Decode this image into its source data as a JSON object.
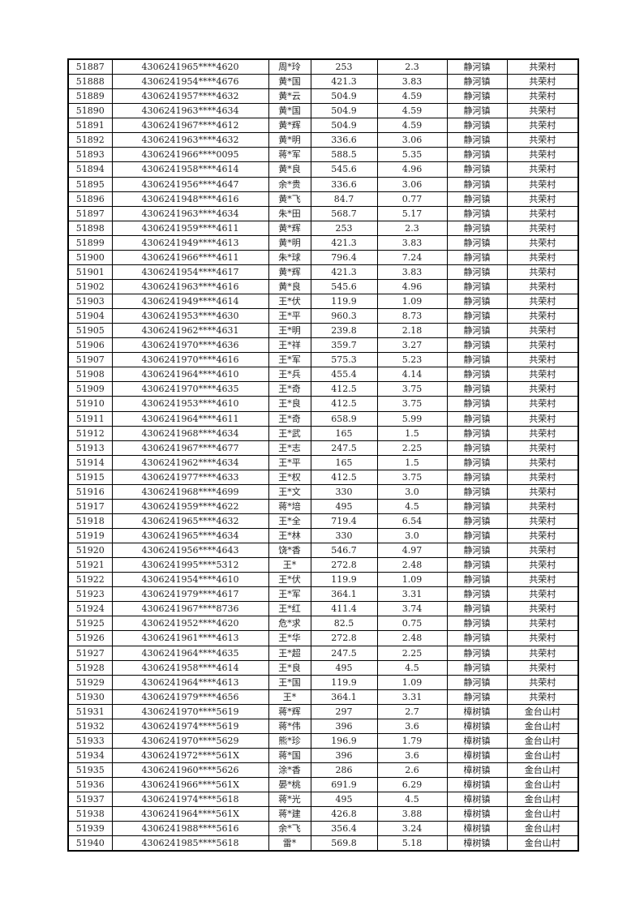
{
  "rows": [
    [
      "51887",
      "4306241965****4620",
      "周*玲",
      "253",
      "2.3",
      "静河镇",
      "共荣村"
    ],
    [
      "51888",
      "4306241954****4676",
      "黄*国",
      "421.3",
      "3.83",
      "静河镇",
      "共荣村"
    ],
    [
      "51889",
      "4306241957****4632",
      "黄*云",
      "504.9",
      "4.59",
      "静河镇",
      "共荣村"
    ],
    [
      "51890",
      "4306241963****4634",
      "黄*国",
      "504.9",
      "4.59",
      "静河镇",
      "共荣村"
    ],
    [
      "51891",
      "4306241967****4612",
      "黄*辉",
      "504.9",
      "4.59",
      "静河镇",
      "共荣村"
    ],
    [
      "51892",
      "4306241963****4632",
      "黄*明",
      "336.6",
      "3.06",
      "静河镇",
      "共荣村"
    ],
    [
      "51893",
      "4306241966****0095",
      "蒋*军",
      "588.5",
      "5.35",
      "静河镇",
      "共荣村"
    ],
    [
      "51894",
      "4306241958****4614",
      "黄*良",
      "545.6",
      "4.96",
      "静河镇",
      "共荣村"
    ],
    [
      "51895",
      "4306241956****4647",
      "余*贵",
      "336.6",
      "3.06",
      "静河镇",
      "共荣村"
    ],
    [
      "51896",
      "4306241948****4616",
      "黄*飞",
      "84.7",
      "0.77",
      "静河镇",
      "共荣村"
    ],
    [
      "51897",
      "4306241963****4634",
      "朱*田",
      "568.7",
      "5.17",
      "静河镇",
      "共荣村"
    ],
    [
      "51898",
      "4306241959****4611",
      "黄*辉",
      "253",
      "2.3",
      "静河镇",
      "共荣村"
    ],
    [
      "51899",
      "4306241949****4613",
      "黄*明",
      "421.3",
      "3.83",
      "静河镇",
      "共荣村"
    ],
    [
      "51900",
      "4306241966****4611",
      "朱*球",
      "796.4",
      "7.24",
      "静河镇",
      "共荣村"
    ],
    [
      "51901",
      "4306241954****4617",
      "黄*辉",
      "421.3",
      "3.83",
      "静河镇",
      "共荣村"
    ],
    [
      "51902",
      "4306241963****4616",
      "黄*良",
      "545.6",
      "4.96",
      "静河镇",
      "共荣村"
    ],
    [
      "51903",
      "4306241949****4614",
      "王*伏",
      "119.9",
      "1.09",
      "静河镇",
      "共荣村"
    ],
    [
      "51904",
      "4306241953****4630",
      "王*平",
      "960.3",
      "8.73",
      "静河镇",
      "共荣村"
    ],
    [
      "51905",
      "4306241962****4631",
      "王*明",
      "239.8",
      "2.18",
      "静河镇",
      "共荣村"
    ],
    [
      "51906",
      "4306241970****4636",
      "王*祥",
      "359.7",
      "3.27",
      "静河镇",
      "共荣村"
    ],
    [
      "51907",
      "4306241970****4616",
      "王*军",
      "575.3",
      "5.23",
      "静河镇",
      "共荣村"
    ],
    [
      "51908",
      "4306241964****4610",
      "王*兵",
      "455.4",
      "4.14",
      "静河镇",
      "共荣村"
    ],
    [
      "51909",
      "4306241970****4635",
      "王*奇",
      "412.5",
      "3.75",
      "静河镇",
      "共荣村"
    ],
    [
      "51910",
      "4306241953****4610",
      "王*良",
      "412.5",
      "3.75",
      "静河镇",
      "共荣村"
    ],
    [
      "51911",
      "4306241964****4611",
      "王*奇",
      "658.9",
      "5.99",
      "静河镇",
      "共荣村"
    ],
    [
      "51912",
      "4306241968****4634",
      "王*武",
      "165",
      "1.5",
      "静河镇",
      "共荣村"
    ],
    [
      "51913",
      "4306241967****4677",
      "王*志",
      "247.5",
      "2.25",
      "静河镇",
      "共荣村"
    ],
    [
      "51914",
      "4306241962****4634",
      "王*平",
      "165",
      "1.5",
      "静河镇",
      "共荣村"
    ],
    [
      "51915",
      "4306241977****4633",
      "王*权",
      "412.5",
      "3.75",
      "静河镇",
      "共荣村"
    ],
    [
      "51916",
      "4306241968****4699",
      "王*文",
      "330",
      "3.0",
      "静河镇",
      "共荣村"
    ],
    [
      "51917",
      "4306241959****4622",
      "蒋*培",
      "495",
      "4.5",
      "静河镇",
      "共荣村"
    ],
    [
      "51918",
      "4306241965****4632",
      "王*全",
      "719.4",
      "6.54",
      "静河镇",
      "共荣村"
    ],
    [
      "51919",
      "4306241965****4634",
      "王*林",
      "330",
      "3.0",
      "静河镇",
      "共荣村"
    ],
    [
      "51920",
      "4306241956****4643",
      "饶*香",
      "546.7",
      "4.97",
      "静河镇",
      "共荣村"
    ],
    [
      "51921",
      "4306241995****5312",
      "王*",
      "272.8",
      "2.48",
      "静河镇",
      "共荣村"
    ],
    [
      "51922",
      "4306241954****4610",
      "王*伏",
      "119.9",
      "1.09",
      "静河镇",
      "共荣村"
    ],
    [
      "51923",
      "4306241979****4617",
      "王*军",
      "364.1",
      "3.31",
      "静河镇",
      "共荣村"
    ],
    [
      "51924",
      "4306241967****8736",
      "王*红",
      "411.4",
      "3.74",
      "静河镇",
      "共荣村"
    ],
    [
      "51925",
      "4306241952****4620",
      "危*求",
      "82.5",
      "0.75",
      "静河镇",
      "共荣村"
    ],
    [
      "51926",
      "4306241961****4613",
      "王*华",
      "272.8",
      "2.48",
      "静河镇",
      "共荣村"
    ],
    [
      "51927",
      "4306241964****4635",
      "王*超",
      "247.5",
      "2.25",
      "静河镇",
      "共荣村"
    ],
    [
      "51928",
      "4306241958****4614",
      "王*良",
      "495",
      "4.5",
      "静河镇",
      "共荣村"
    ],
    [
      "51929",
      "4306241964****4613",
      "王*国",
      "119.9",
      "1.09",
      "静河镇",
      "共荣村"
    ],
    [
      "51930",
      "4306241979****4656",
      "王*",
      "364.1",
      "3.31",
      "静河镇",
      "共荣村"
    ],
    [
      "51931",
      "4306241970****5619",
      "蒋*辉",
      "297",
      "2.7",
      "樟树镇",
      "金台山村"
    ],
    [
      "51932",
      "4306241974****5619",
      "蒋*伟",
      "396",
      "3.6",
      "樟树镇",
      "金台山村"
    ],
    [
      "51933",
      "4306241970****5629",
      "熊*珍",
      "196.9",
      "1.79",
      "樟树镇",
      "金台山村"
    ],
    [
      "51934",
      "4306241972****561X",
      "蒋*国",
      "396",
      "3.6",
      "樟树镇",
      "金台山村"
    ],
    [
      "51935",
      "4306241960****5626",
      "涂*香",
      "286",
      "2.6",
      "樟树镇",
      "金台山村"
    ],
    [
      "51936",
      "4306241966****561X",
      "晏*桃",
      "691.9",
      "6.29",
      "樟树镇",
      "金台山村"
    ],
    [
      "51937",
      "4306241974****5618",
      "蒋*光",
      "495",
      "4.5",
      "樟树镇",
      "金台山村"
    ],
    [
      "51938",
      "4306241964****561X",
      "蒋*建",
      "426.8",
      "3.88",
      "樟树镇",
      "金台山村"
    ],
    [
      "51939",
      "4306241988****5616",
      "余*飞",
      "356.4",
      "3.24",
      "樟树镇",
      "金台山村"
    ],
    [
      "51940",
      "4306241985****5618",
      "雷*",
      "569.8",
      "5.18",
      "樟树镇",
      "金台山村"
    ]
  ]
}
